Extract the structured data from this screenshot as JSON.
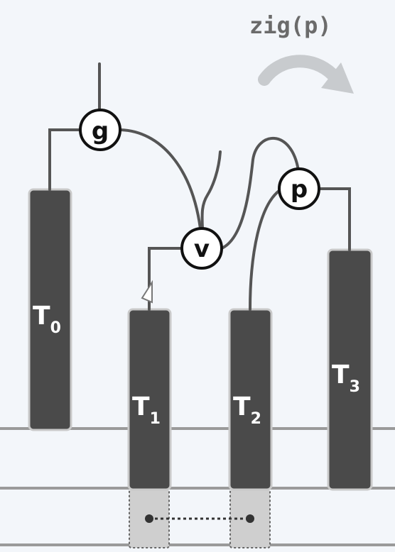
{
  "operation": {
    "label": "zig(p)"
  },
  "nodes": [
    {
      "id": "g",
      "label": "g"
    },
    {
      "id": "v",
      "label": "v"
    },
    {
      "id": "p",
      "label": "p"
    }
  ],
  "subtrees": [
    {
      "base": "T",
      "sub": "0"
    },
    {
      "base": "T",
      "sub": "1"
    },
    {
      "base": "T",
      "sub": "2"
    },
    {
      "base": "T",
      "sub": "3"
    }
  ],
  "colors": {
    "background": "#f3f6fa",
    "subtree_fill": "#4a4a4a",
    "subtree_border": "#c9c9c9",
    "edge": "#555555",
    "node_fill": "#ffffff",
    "node_stroke": "#111111",
    "arrow": "#c8cbce",
    "title": "#6b6b6b",
    "baseline": "#9a9a9a"
  }
}
